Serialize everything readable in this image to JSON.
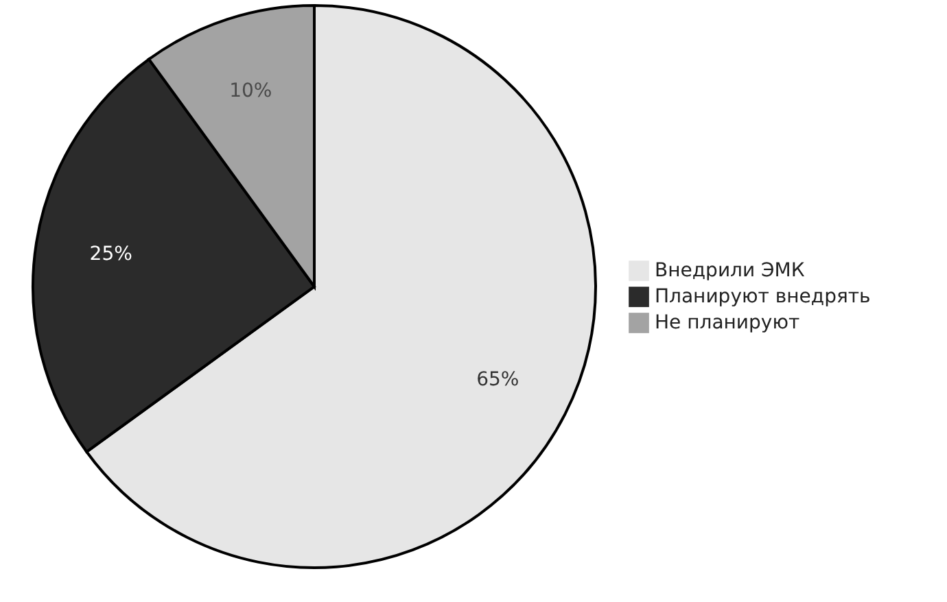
{
  "chart_data": {
    "type": "pie",
    "categories": [
      "Внедрили ЭМК",
      "Планируют внедрять",
      "Не планируют"
    ],
    "values": [
      65,
      25,
      10
    ],
    "colors": [
      "#e6e6e6",
      "#2b2b2b",
      "#a3a3a3"
    ],
    "value_labels": [
      "65%",
      "25%",
      "10%"
    ],
    "legend": "right"
  }
}
